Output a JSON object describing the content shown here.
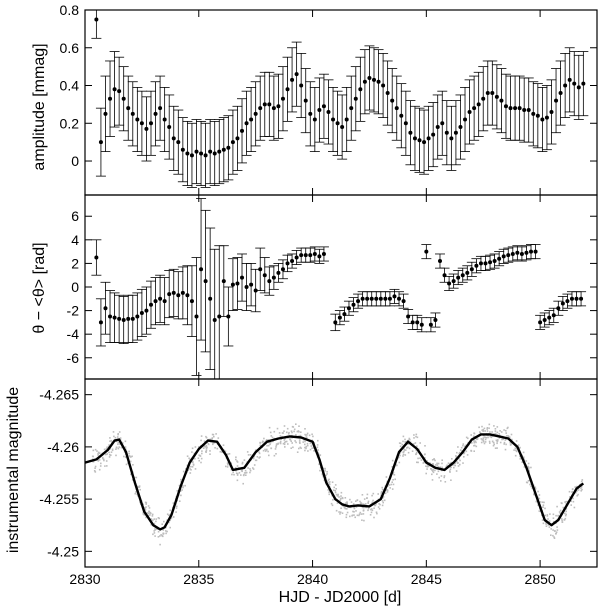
{
  "chart_data": [
    {
      "type": "scatter",
      "panel": "amplitude",
      "ylabel": "amplitude [mmag]",
      "xlim": [
        2830,
        2852.5
      ],
      "ylim": [
        -0.18,
        0.8
      ],
      "y_ticks": [
        0,
        0.2,
        0.4,
        0.6,
        0.8
      ],
      "y_tick_labels": [
        "0",
        "0.2",
        "0.4",
        "0.6",
        "0.8"
      ],
      "marker": "filled-circle",
      "error_bars": true,
      "series": [
        {
          "x": [
            2830.5,
            2830.7,
            2830.9,
            2831.1,
            2831.3,
            2831.5,
            2831.7,
            2831.9,
            2832.1,
            2832.3,
            2832.5,
            2832.7,
            2832.9,
            2833.1,
            2833.3,
            2833.5,
            2833.7,
            2833.9,
            2834.1,
            2834.3,
            2834.5,
            2834.7,
            2834.9,
            2835.1,
            2835.3,
            2835.5,
            2835.7,
            2835.9,
            2836.1,
            2836.3,
            2836.5,
            2836.7,
            2836.9,
            2837.1,
            2837.3,
            2837.5,
            2837.7,
            2837.9,
            2838.1,
            2838.3,
            2838.5,
            2838.7,
            2838.9,
            2839.1,
            2839.3,
            2839.5,
            2839.7,
            2839.9,
            2840.1,
            2840.3,
            2840.5,
            2840.7,
            2840.9,
            2841.1,
            2841.3,
            2841.5,
            2841.7,
            2841.9,
            2842.1,
            2842.3,
            2842.5,
            2842.7,
            2842.9,
            2843.1,
            2843.3,
            2843.5,
            2843.7,
            2843.9,
            2844.1,
            2844.3,
            2844.5,
            2844.7,
            2844.9,
            2845.1,
            2845.3,
            2845.5,
            2845.7,
            2845.9,
            2846.1,
            2846.3,
            2846.5,
            2846.7,
            2846.9,
            2847.1,
            2847.3,
            2847.5,
            2847.7,
            2847.9,
            2848.1,
            2848.3,
            2848.5,
            2848.7,
            2848.9,
            2849.1,
            2849.3,
            2849.5,
            2849.7,
            2849.9,
            2850.1,
            2850.3,
            2850.5,
            2850.7,
            2850.9,
            2851.1,
            2851.3,
            2851.5,
            2851.7,
            2851.9
          ],
          "y": [
            0.75,
            0.1,
            0.25,
            0.33,
            0.38,
            0.37,
            0.33,
            0.28,
            0.25,
            0.22,
            0.2,
            0.17,
            0.2,
            0.25,
            0.28,
            0.22,
            0.18,
            0.12,
            0.1,
            0.06,
            0.04,
            0.03,
            0.05,
            0.04,
            0.03,
            0.05,
            0.04,
            0.05,
            0.06,
            0.07,
            0.1,
            0.12,
            0.16,
            0.2,
            0.22,
            0.25,
            0.28,
            0.3,
            0.3,
            0.28,
            0.29,
            0.33,
            0.38,
            0.43,
            0.46,
            0.4,
            0.32,
            0.25,
            0.22,
            0.27,
            0.29,
            0.26,
            0.22,
            0.2,
            0.18,
            0.22,
            0.28,
            0.33,
            0.38,
            0.42,
            0.44,
            0.43,
            0.42,
            0.4,
            0.36,
            0.32,
            0.28,
            0.24,
            0.2,
            0.15,
            0.12,
            0.11,
            0.1,
            0.12,
            0.14,
            0.18,
            0.2,
            0.15,
            0.12,
            0.15,
            0.18,
            0.22,
            0.26,
            0.28,
            0.3,
            0.33,
            0.36,
            0.36,
            0.34,
            0.32,
            0.29,
            0.28,
            0.28,
            0.28,
            0.27,
            0.27,
            0.25,
            0.24,
            0.22,
            0.23,
            0.26,
            0.32,
            0.36,
            0.4,
            0.43,
            0.41,
            0.39,
            0.41
          ],
          "err": [
            0.1,
            0.18,
            0.2,
            0.2,
            0.2,
            0.18,
            0.17,
            0.17,
            0.17,
            0.17,
            0.17,
            0.17,
            0.17,
            0.17,
            0.17,
            0.17,
            0.17,
            0.17,
            0.17,
            0.17,
            0.17,
            0.17,
            0.17,
            0.17,
            0.17,
            0.17,
            0.17,
            0.17,
            0.17,
            0.17,
            0.17,
            0.17,
            0.17,
            0.17,
            0.17,
            0.17,
            0.17,
            0.17,
            0.17,
            0.17,
            0.17,
            0.17,
            0.17,
            0.17,
            0.17,
            0.17,
            0.17,
            0.17,
            0.17,
            0.17,
            0.17,
            0.17,
            0.17,
            0.17,
            0.17,
            0.17,
            0.17,
            0.17,
            0.17,
            0.17,
            0.17,
            0.17,
            0.17,
            0.17,
            0.17,
            0.17,
            0.17,
            0.17,
            0.17,
            0.17,
            0.17,
            0.17,
            0.17,
            0.17,
            0.17,
            0.17,
            0.17,
            0.17,
            0.17,
            0.17,
            0.17,
            0.17,
            0.17,
            0.17,
            0.17,
            0.17,
            0.17,
            0.17,
            0.17,
            0.17,
            0.17,
            0.17,
            0.17,
            0.17,
            0.17,
            0.17,
            0.17,
            0.17,
            0.17,
            0.17,
            0.17,
            0.17,
            0.17,
            0.17,
            0.17,
            0.17,
            0.17,
            0.17
          ]
        }
      ]
    },
    {
      "type": "scatter",
      "panel": "phase",
      "ylabel": "θ − <θ> [rad]",
      "xlim": [
        2830,
        2852.5
      ],
      "ylim": [
        -7.8,
        7.8
      ],
      "y_ticks": [
        -6,
        -4,
        -2,
        0,
        2,
        4,
        6
      ],
      "y_tick_labels": [
        "-6",
        "-4",
        "-2",
        "0",
        "2",
        "4",
        "6"
      ],
      "marker": "filled-circle",
      "error_bars": true,
      "series": [
        {
          "x": [
            2830.5,
            2830.7,
            2830.9,
            2831.1,
            2831.3,
            2831.5,
            2831.7,
            2831.9,
            2832.1,
            2832.3,
            2832.5,
            2832.7,
            2832.9,
            2833.1,
            2833.3,
            2833.5,
            2833.7,
            2833.9,
            2834.1,
            2834.3,
            2834.5,
            2834.7,
            2834.9,
            2835.1,
            2835.3,
            2835.5,
            2835.7,
            2835.9,
            2836.1,
            2836.3,
            2836.5,
            2836.7,
            2836.9,
            2837.1,
            2837.3,
            2837.5,
            2837.7,
            2837.9,
            2838.1,
            2838.3,
            2838.5,
            2838.7,
            2838.9,
            2839.1,
            2839.3,
            2839.5,
            2839.7,
            2839.9,
            2840.1,
            2840.3,
            2840.5,
            2841.0,
            2841.2,
            2841.4,
            2841.6,
            2841.8,
            2842.0,
            2842.2,
            2842.4,
            2842.6,
            2842.8,
            2843.0,
            2843.2,
            2843.4,
            2843.6,
            2843.8,
            2844.0,
            2844.2,
            2844.4,
            2844.6,
            2844.8,
            2845.0,
            2845.2,
            2845.4,
            2845.6,
            2845.8,
            2846.0,
            2846.2,
            2846.4,
            2846.6,
            2846.8,
            2847.0,
            2847.2,
            2847.4,
            2847.6,
            2847.8,
            2848.0,
            2848.2,
            2848.4,
            2848.6,
            2848.8,
            2849.0,
            2849.2,
            2849.4,
            2849.6,
            2849.8,
            2850.0,
            2850.2,
            2850.4,
            2850.6,
            2850.8,
            2851.0,
            2851.2,
            2851.4,
            2851.6,
            2851.8
          ],
          "y": [
            2.5,
            -3.0,
            -1.8,
            -2.5,
            -2.6,
            -2.7,
            -2.8,
            -2.7,
            -2.7,
            -2.5,
            -2.2,
            -2.0,
            -1.5,
            -1.2,
            -1.0,
            -1.2,
            -0.6,
            -0.5,
            -0.7,
            -0.5,
            -0.7,
            -1.2,
            -2.5,
            1.5,
            0.5,
            -1.0,
            -2.8,
            -2.5,
            0.5,
            -2.5,
            0.2,
            0.3,
            0.8,
            0.0,
            0.2,
            -0.3,
            1.5,
            1.0,
            0.5,
            0.8,
            1.2,
            1.5,
            2.0,
            2.2,
            2.5,
            2.7,
            2.7,
            2.7,
            2.8,
            2.6,
            2.8,
            -3.0,
            -2.6,
            -2.3,
            -1.8,
            -1.5,
            -1.2,
            -1.0,
            -1.0,
            -1.0,
            -1.0,
            -1.0,
            -1.0,
            -1.0,
            -0.8,
            -1.0,
            -1.2,
            -2.5,
            -3.0,
            -3.0,
            -3.2,
            3.0,
            -3.2,
            -2.8,
            2.2,
            1.0,
            0.3,
            0.5,
            0.8,
            1.0,
            1.2,
            1.5,
            1.8,
            2.0,
            2.0,
            2.1,
            2.2,
            2.4,
            2.6,
            2.7,
            2.8,
            2.9,
            2.8,
            2.9,
            3.0,
            3.0,
            -3.0,
            -2.8,
            -2.6,
            -2.4,
            -1.8,
            -1.4,
            -1.2,
            -1.0,
            -1.0,
            -1.0
          ],
          "err": [
            1.5,
            2.0,
            2.2,
            2.2,
            2.1,
            2.0,
            2.0,
            2.0,
            2.0,
            2.0,
            2.0,
            2.0,
            2.0,
            2.0,
            2.0,
            2.0,
            2.0,
            2.0,
            2.0,
            2.2,
            2.5,
            3.0,
            5.0,
            6.0,
            6.0,
            6.0,
            6.0,
            6.0,
            3.0,
            2.5,
            2.2,
            2.2,
            2.0,
            2.0,
            1.8,
            1.8,
            1.8,
            1.5,
            1.2,
            1.0,
            0.8,
            0.8,
            0.7,
            0.6,
            0.6,
            0.6,
            0.6,
            0.6,
            0.6,
            0.6,
            0.6,
            0.7,
            0.6,
            0.6,
            0.6,
            0.6,
            0.6,
            0.6,
            0.6,
            0.6,
            0.6,
            0.6,
            0.6,
            0.6,
            0.6,
            0.6,
            0.6,
            0.6,
            0.6,
            0.6,
            0.6,
            0.6,
            0.6,
            0.6,
            0.6,
            0.6,
            0.6,
            0.6,
            0.6,
            0.6,
            0.6,
            0.6,
            0.6,
            0.6,
            0.6,
            0.6,
            0.6,
            0.6,
            0.6,
            0.6,
            0.6,
            0.6,
            0.6,
            0.6,
            0.6,
            0.6,
            0.6,
            0.6,
            0.6,
            0.6,
            0.6,
            0.6,
            0.6,
            0.6,
            0.6,
            0.6
          ]
        }
      ]
    },
    {
      "type": "line",
      "panel": "light-curve",
      "ylabel": "instrumental magnitude",
      "xlabel": "HJD - JD2000 [d]",
      "xlim": [
        2830,
        2852.5
      ],
      "ylim": [
        -4.2665,
        -4.2485
      ],
      "y_reversed": true,
      "y_ticks": [
        -4.265,
        -4.26,
        -4.255,
        -4.25
      ],
      "y_tick_labels": [
        "-4.265",
        "-4.26",
        "-4.255",
        "-4.25"
      ],
      "x_ticks": [
        2830,
        2835,
        2840,
        2845,
        2850
      ],
      "x_tick_labels": [
        "2830",
        "2835",
        "2840",
        "2845",
        "2850"
      ],
      "raw_points_color": "#bdbdbd",
      "series": [
        {
          "type": "line",
          "color": "#000000",
          "x": [
            2830.0,
            2830.5,
            2831.0,
            2831.3,
            2831.5,
            2831.8,
            2832.2,
            2832.6,
            2833.0,
            2833.3,
            2833.5,
            2833.8,
            2834.2,
            2834.6,
            2835.0,
            2835.4,
            2835.8,
            2836.2,
            2836.5,
            2837.0,
            2837.5,
            2838.0,
            2838.5,
            2839.0,
            2839.5,
            2840.0,
            2840.3,
            2840.6,
            2841.0,
            2841.3,
            2841.6,
            2842.0,
            2842.5,
            2843.0,
            2843.4,
            2843.8,
            2844.2,
            2844.6,
            2845.0,
            2845.4,
            2845.8,
            2846.2,
            2846.6,
            2847.0,
            2847.4,
            2847.8,
            2848.2,
            2848.6,
            2849.0,
            2849.4,
            2849.8,
            2850.2,
            2850.5,
            2850.8,
            2851.2,
            2851.6,
            2851.9
          ],
          "y": [
            -4.2585,
            -4.2588,
            -4.2597,
            -4.2606,
            -4.2607,
            -4.2595,
            -4.2565,
            -4.2538,
            -4.2525,
            -4.2521,
            -4.2523,
            -4.2535,
            -4.2562,
            -4.2585,
            -4.2598,
            -4.2606,
            -4.2605,
            -4.2592,
            -4.2578,
            -4.258,
            -4.2595,
            -4.2605,
            -4.2608,
            -4.261,
            -4.2609,
            -4.2605,
            -4.2588,
            -4.2566,
            -4.255,
            -4.2545,
            -4.2543,
            -4.2544,
            -4.2543,
            -4.255,
            -4.257,
            -4.2595,
            -4.2605,
            -4.2598,
            -4.2585,
            -4.258,
            -4.2578,
            -4.2585,
            -4.2595,
            -4.2607,
            -4.2612,
            -4.2612,
            -4.261,
            -4.2608,
            -4.26,
            -4.258,
            -4.2555,
            -4.253,
            -4.2525,
            -4.253,
            -4.2545,
            -4.256,
            -4.2565
          ]
        }
      ]
    }
  ]
}
